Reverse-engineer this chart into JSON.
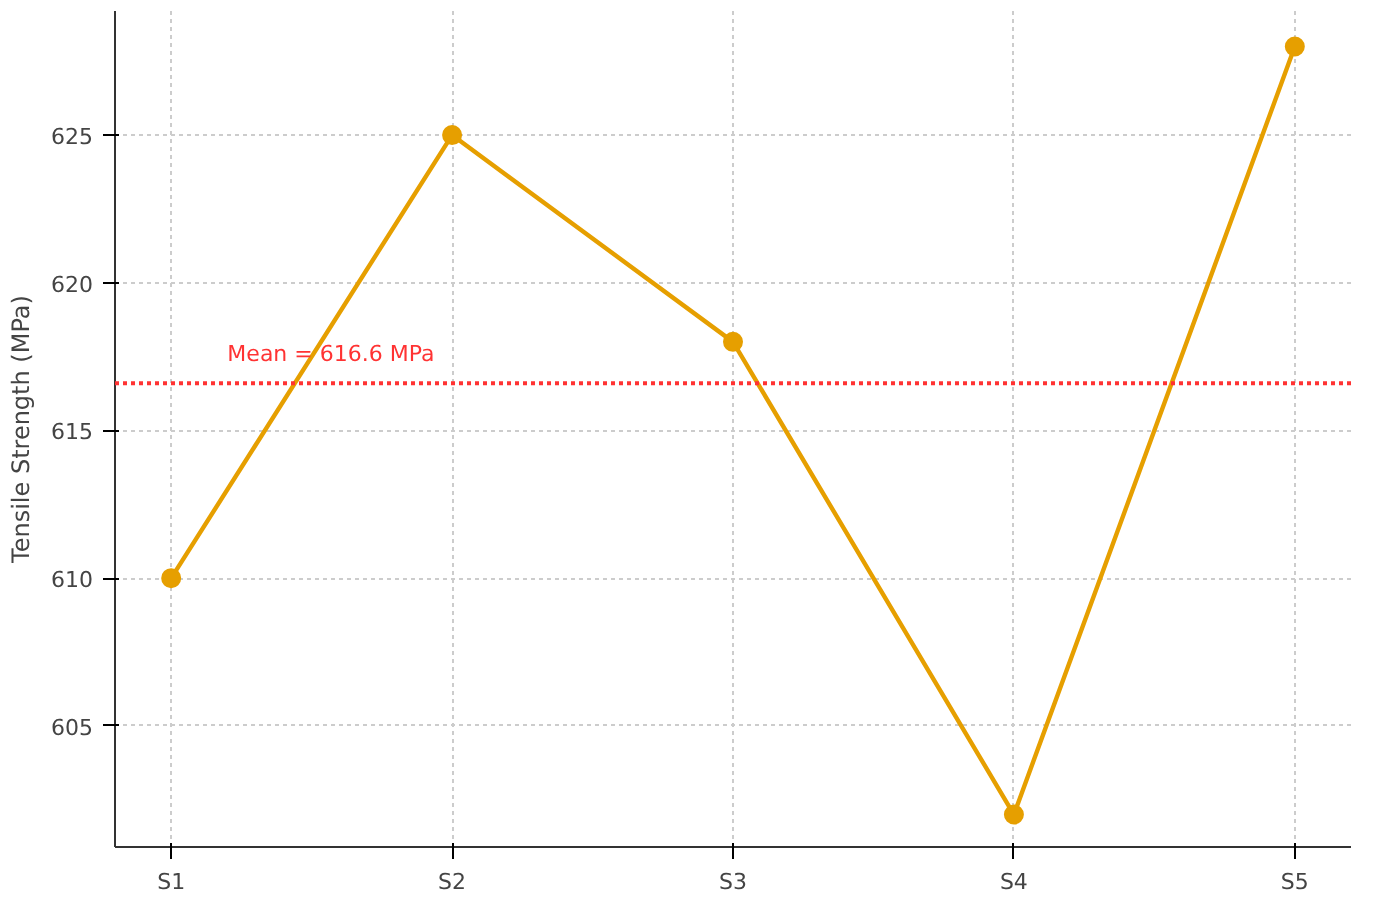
{
  "chart_data": {
    "type": "line",
    "ylabel": "Tensile Strength (MPa)",
    "categories": [
      "S1",
      "S2",
      "S3",
      "S4",
      "S5"
    ],
    "series": [
      {
        "color": "#e69f00",
        "values": [
          610,
          625,
          618,
          602,
          628
        ]
      }
    ],
    "ylim": [
      600.9,
      629.2
    ],
    "yticks": [
      605,
      610,
      615,
      620,
      625
    ],
    "ref_lines": [
      {
        "axis": "y",
        "value": 616.6,
        "label": "Mean = 616.6 MPa",
        "color": "#ff3333",
        "line_style": "dotted"
      }
    ],
    "grid": true,
    "marker": "circle",
    "line_style": "solid"
  }
}
